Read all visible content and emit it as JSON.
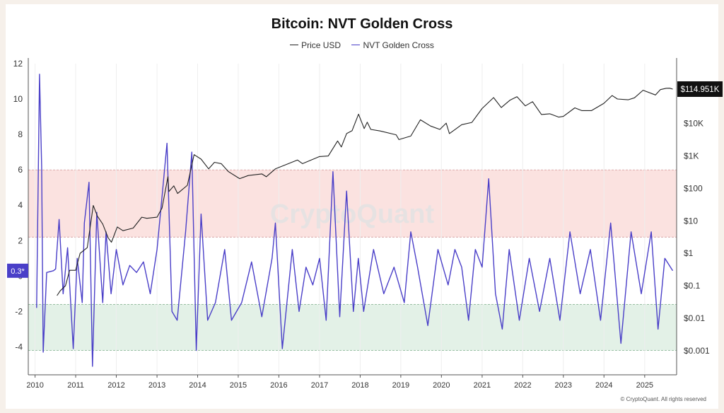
{
  "chart_data": {
    "type": "line",
    "title": "Bitcoin: NVT Golden Cross",
    "legend_placement": "top-center",
    "series": [
      {
        "name": "Price USD",
        "axis": "right",
        "color": "#222222",
        "points": [
          [
            "2010-07-17",
            0.05
          ],
          [
            "2010-08-15",
            0.07
          ],
          [
            "2010-10-01",
            0.1
          ],
          [
            "2010-11-08",
            0.3
          ],
          [
            "2011-01-01",
            0.3
          ],
          [
            "2011-02-10",
            1
          ],
          [
            "2011-04-15",
            1.5
          ],
          [
            "2011-06-08",
            30
          ],
          [
            "2011-07-15",
            14
          ],
          [
            "2011-09-01",
            8
          ],
          [
            "2011-10-20",
            3
          ],
          [
            "2011-11-18",
            2.2
          ],
          [
            "2012-01-10",
            6.5
          ],
          [
            "2012-03-01",
            5
          ],
          [
            "2012-06-01",
            6
          ],
          [
            "2012-08-17",
            13
          ],
          [
            "2012-10-01",
            12
          ],
          [
            "2013-01-01",
            13
          ],
          [
            "2013-02-15",
            25
          ],
          [
            "2013-04-09",
            230
          ],
          [
            "2013-04-17",
            80
          ],
          [
            "2013-06-01",
            120
          ],
          [
            "2013-07-05",
            70
          ],
          [
            "2013-10-01",
            125
          ],
          [
            "2013-11-30",
            1100
          ],
          [
            "2014-02-01",
            800
          ],
          [
            "2014-04-10",
            400
          ],
          [
            "2014-06-01",
            640
          ],
          [
            "2014-08-01",
            580
          ],
          [
            "2014-10-05",
            330
          ],
          [
            "2015-01-14",
            200
          ],
          [
            "2015-04-01",
            250
          ],
          [
            "2015-08-01",
            280
          ],
          [
            "2015-09-10",
            230
          ],
          [
            "2015-12-01",
            400
          ],
          [
            "2016-06-17",
            750
          ],
          [
            "2016-08-01",
            580
          ],
          [
            "2016-12-31",
            960
          ],
          [
            "2017-03-20",
            1000
          ],
          [
            "2017-06-12",
            2900
          ],
          [
            "2017-07-16",
            1900
          ],
          [
            "2017-09-01",
            4900
          ],
          [
            "2017-10-20",
            6000
          ],
          [
            "2017-12-17",
            19500
          ],
          [
            "2018-02-06",
            7000
          ],
          [
            "2018-03-05",
            11000
          ],
          [
            "2018-04-06",
            6600
          ],
          [
            "2018-06-29",
            5900
          ],
          [
            "2018-11-20",
            4500
          ],
          [
            "2018-12-15",
            3200
          ],
          [
            "2019-04-01",
            4100
          ],
          [
            "2019-06-26",
            13000
          ],
          [
            "2019-09-25",
            8400
          ],
          [
            "2019-12-18",
            6600
          ],
          [
            "2020-02-13",
            10300
          ],
          [
            "2020-03-13",
            4900
          ],
          [
            "2020-07-01",
            9200
          ],
          [
            "2020-10-01",
            10800
          ],
          [
            "2020-12-31",
            29000
          ],
          [
            "2021-04-14",
            63000
          ],
          [
            "2021-06-22",
            31000
          ],
          [
            "2021-09-07",
            52000
          ],
          [
            "2021-11-10",
            67000
          ],
          [
            "2022-01-24",
            35000
          ],
          [
            "2022-03-30",
            47000
          ],
          [
            "2022-06-18",
            19000
          ],
          [
            "2022-09-01",
            20000
          ],
          [
            "2022-11-21",
            15800
          ],
          [
            "2023-01-01",
            16600
          ],
          [
            "2023-04-14",
            30400
          ],
          [
            "2023-06-15",
            25000
          ],
          [
            "2023-09-11",
            25000
          ],
          [
            "2023-12-31",
            42000
          ],
          [
            "2024-03-14",
            73000
          ],
          [
            "2024-05-01",
            57000
          ],
          [
            "2024-08-05",
            54000
          ],
          [
            "2024-10-01",
            62000
          ],
          [
            "2024-12-17",
            106000
          ],
          [
            "2025-04-08",
            76000
          ],
          [
            "2025-05-22",
            111000
          ],
          [
            "2025-07-14",
            122000
          ],
          [
            "2025-08-14",
            123000
          ],
          [
            "2025-09-10",
            114951
          ]
        ]
      },
      {
        "name": "NVT Golden Cross",
        "axis": "left",
        "color": "#4a3fc8",
        "points": [
          [
            "2010-01-15",
            -1.8
          ],
          [
            "2010-02-10",
            11.4
          ],
          [
            "2010-03-01",
            6.2
          ],
          [
            "2010-03-15",
            -4.3
          ],
          [
            "2010-04-15",
            0.2
          ],
          [
            "2010-06-15",
            0.3
          ],
          [
            "2010-07-05",
            0.4
          ],
          [
            "2010-08-05",
            3.2
          ],
          [
            "2010-09-10",
            -1.0
          ],
          [
            "2010-10-20",
            1.6
          ],
          [
            "2010-12-10",
            -4.1
          ],
          [
            "2011-01-15",
            1.0
          ],
          [
            "2011-03-01",
            -1.5
          ],
          [
            "2011-03-20",
            3.0
          ],
          [
            "2011-05-01",
            5.3
          ],
          [
            "2011-06-01",
            -5.1
          ],
          [
            "2011-07-10",
            3.6
          ],
          [
            "2011-09-01",
            -1.5
          ],
          [
            "2011-10-01",
            2.5
          ],
          [
            "2011-11-15",
            -1.0
          ],
          [
            "2012-01-01",
            1.5
          ],
          [
            "2012-03-01",
            -0.5
          ],
          [
            "2012-05-01",
            0.6
          ],
          [
            "2012-07-01",
            0.2
          ],
          [
            "2012-09-01",
            0.8
          ],
          [
            "2012-11-01",
            -1.0
          ],
          [
            "2013-01-01",
            1.5
          ],
          [
            "2013-02-15",
            4.5
          ],
          [
            "2013-04-01",
            7.5
          ],
          [
            "2013-05-15",
            -2.0
          ],
          [
            "2013-07-01",
            -2.5
          ],
          [
            "2013-09-15",
            2.5
          ],
          [
            "2013-11-10",
            7.0
          ],
          [
            "2013-12-20",
            -4.2
          ],
          [
            "2014-02-01",
            3.5
          ],
          [
            "2014-04-01",
            -2.5
          ],
          [
            "2014-06-10",
            -1.5
          ],
          [
            "2014-09-01",
            1.5
          ],
          [
            "2014-11-01",
            -2.5
          ],
          [
            "2015-02-01",
            -1.5
          ],
          [
            "2015-05-01",
            0.8
          ],
          [
            "2015-08-01",
            -2.3
          ],
          [
            "2015-11-01",
            1.0
          ],
          [
            "2015-12-01",
            3.0
          ],
          [
            "2016-02-01",
            -4.1
          ],
          [
            "2016-05-01",
            1.5
          ],
          [
            "2016-07-01",
            -2.0
          ],
          [
            "2016-09-01",
            0.5
          ],
          [
            "2016-11-01",
            -0.5
          ],
          [
            "2017-01-01",
            1.0
          ],
          [
            "2017-03-01",
            -2.5
          ],
          [
            "2017-05-01",
            5.9
          ],
          [
            "2017-07-01",
            -2.3
          ],
          [
            "2017-09-01",
            4.8
          ],
          [
            "2017-11-01",
            -2.0
          ],
          [
            "2017-12-15",
            1.0
          ],
          [
            "2018-02-01",
            -2.0
          ],
          [
            "2018-05-01",
            1.5
          ],
          [
            "2018-08-01",
            -1.0
          ],
          [
            "2018-11-01",
            0.5
          ],
          [
            "2019-02-01",
            -1.5
          ],
          [
            "2019-04-01",
            2.5
          ],
          [
            "2019-06-01",
            0.5
          ],
          [
            "2019-09-01",
            -2.8
          ],
          [
            "2019-12-01",
            1.5
          ],
          [
            "2020-03-01",
            -0.5
          ],
          [
            "2020-05-01",
            1.5
          ],
          [
            "2020-07-01",
            0.5
          ],
          [
            "2020-09-01",
            -2.5
          ],
          [
            "2020-11-01",
            1.5
          ],
          [
            "2021-01-01",
            0.5
          ],
          [
            "2021-03-01",
            5.5
          ],
          [
            "2021-05-01",
            -1.0
          ],
          [
            "2021-07-01",
            -3.0
          ],
          [
            "2021-09-01",
            1.5
          ],
          [
            "2021-12-01",
            -2.5
          ],
          [
            "2022-03-01",
            1.0
          ],
          [
            "2022-06-01",
            -2.0
          ],
          [
            "2022-09-01",
            1.0
          ],
          [
            "2022-12-01",
            -2.5
          ],
          [
            "2023-03-01",
            2.5
          ],
          [
            "2023-06-01",
            -1.0
          ],
          [
            "2023-09-01",
            1.5
          ],
          [
            "2023-12-01",
            -2.5
          ],
          [
            "2024-03-01",
            3.0
          ],
          [
            "2024-06-01",
            -3.8
          ],
          [
            "2024-09-01",
            2.5
          ],
          [
            "2024-12-01",
            -1.0
          ],
          [
            "2025-03-01",
            2.5
          ],
          [
            "2025-05-01",
            -3.0
          ],
          [
            "2025-07-01",
            1.0
          ],
          [
            "2025-09-10",
            0.3
          ]
        ]
      }
    ],
    "x_axis": {
      "ticks": [
        "2010",
        "2011",
        "2012",
        "2013",
        "2014",
        "2015",
        "2016",
        "2017",
        "2018",
        "2019",
        "2020",
        "2021",
        "2022",
        "2023",
        "2024",
        "2025"
      ],
      "range": [
        "2009-11-01",
        "2025-10-15"
      ]
    },
    "y_left": {
      "ticks": [
        "12",
        "10",
        "8",
        "6",
        "4",
        "2",
        "0",
        "-2",
        "-4"
      ],
      "range": [
        -5.5,
        12
      ]
    },
    "y_right": {
      "scale": "log",
      "ticks": [
        "$10K",
        "$1K",
        "$100",
        "$10",
        "$1",
        "$0.1",
        "$0.01",
        "$0.001"
      ],
      "range": [
        0.0002,
        700000
      ]
    },
    "bands": [
      {
        "from": 2.2,
        "to": 6.0,
        "color": "#fbe2e0"
      },
      {
        "from": -4.2,
        "to": -1.6,
        "color": "#e3f1e7"
      }
    ],
    "current_value_labels": {
      "left": "0.3*",
      "right": "$114.951K"
    },
    "watermark": "CryptoQuant"
  },
  "footer": {
    "copyright": "© CryptoQuant. All rights reserved"
  }
}
